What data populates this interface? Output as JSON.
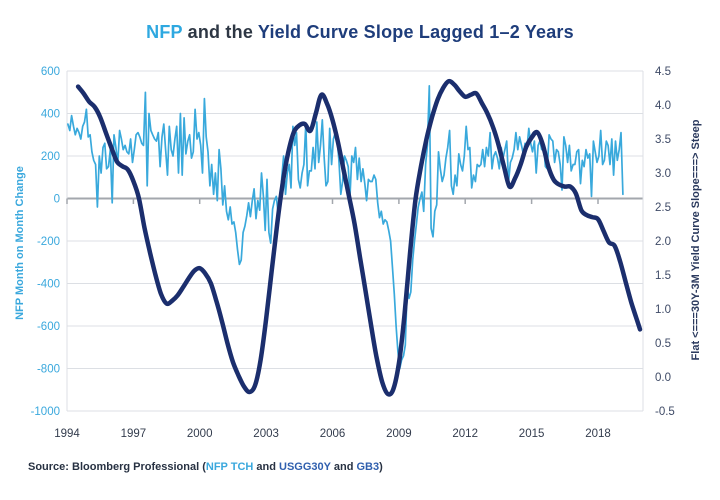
{
  "title": {
    "parts": [
      {
        "text": "NFP"
      },
      {
        "text": " and the "
      },
      {
        "text": "Yield Curve Slope Lagged 1–2 Years"
      }
    ]
  },
  "source": {
    "segments": [
      {
        "text": "Source: Bloomberg Professional ("
      },
      {
        "text": "NFP TCH"
      },
      {
        "text": " and "
      },
      {
        "text": "USGG30Y"
      },
      {
        "text": " and "
      },
      {
        "text": "GB3"
      },
      {
        "text": ")"
      }
    ]
  },
  "colors": {
    "nfp_line": "#39a9dc",
    "yield_line": "#1b2e6d",
    "left_axis_text": "#3aa8dd",
    "right_axis_text": "#3e4a66",
    "right_axis_title": "#2b3a5e",
    "x_axis_text": "#333c4d",
    "grid": "#dcdfe4",
    "zero_line": "#a3a7ad",
    "title_accent": "#2ea8e0",
    "title_navy": "#1e3d7b"
  },
  "chart_data": {
    "type": "line",
    "title": "NFP and the Yield Curve Slope Lagged 1–2 Years",
    "legend": "none",
    "grid": "horizontal",
    "x_axis": {
      "ticks": [
        "1994",
        "1997",
        "2000",
        "2003",
        "2006",
        "2009",
        "2012",
        "2015",
        "2018"
      ],
      "range": [
        1994,
        2019.9
      ]
    },
    "y_left": {
      "label": "NFP Month on Month Change",
      "range": [
        -1000,
        600
      ],
      "ticks": [
        "600",
        "400",
        "200",
        "0",
        "-200",
        "-400",
        "-600",
        "-800",
        "-1000"
      ]
    },
    "y_right": {
      "label": "Flat <===30Y-3M Yield Curve Slope===> Steep",
      "range": [
        -0.5,
        4.5
      ],
      "ticks": [
        "4.5",
        "4.0",
        "3.5",
        "3.0",
        "2.5",
        "2.0",
        "1.5",
        "1.0",
        "0.5",
        "0.0",
        "-0.5"
      ]
    },
    "series": [
      {
        "name": "NFP Month on Month Change (thousands, monthly)",
        "axis": "left",
        "color": "#39a9dc",
        "x_start": 1994.042,
        "x_step": 0.083333,
        "values": [
          350,
          320,
          390,
          340,
          300,
          330,
          310,
          280,
          340,
          360,
          420,
          290,
          300,
          220,
          180,
          160,
          -40,
          200,
          120,
          240,
          260,
          140,
          150,
          230,
          -20,
          300,
          240,
          160,
          320,
          280,
          230,
          250,
          220,
          210,
          280,
          170,
          230,
          300,
          310,
          290,
          260,
          250,
          500,
          60,
          400,
          320,
          300,
          280,
          270,
          310,
          150,
          290,
          350,
          230,
          110,
          340,
          230,
          200,
          280,
          340,
          120,
          400,
          110,
          380,
          210,
          270,
          300,
          190,
          220,
          420,
          280,
          310,
          250,
          120,
          470,
          290,
          220,
          60,
          160,
          20,
          120,
          -10,
          230,
          140,
          -30,
          60,
          -60,
          -100,
          -40,
          -120,
          -110,
          -160,
          -240,
          -310,
          -290,
          -160,
          -130,
          -80,
          -20,
          -85,
          -10,
          45,
          -95,
          -10,
          -55,
          120,
          10,
          -150,
          90,
          -160,
          -210,
          -50,
          -10,
          10,
          -70,
          -20,
          100,
          200,
          20,
          120,
          160,
          50,
          340,
          250,
          310,
          90,
          50,
          120,
          160,
          350,
          60,
          130,
          130,
          240,
          140,
          360,
          170,
          250,
          370,
          190,
          60,
          80,
          330,
          160,
          280,
          310,
          280,
          180,
          20,
          80,
          200,
          180,
          150,
          10,
          200,
          170,
          240,
          90,
          190,
          80,
          140,
          70,
          -10,
          90,
          80,
          80,
          110,
          90,
          -20,
          -90,
          -60,
          -120,
          -100,
          -110,
          -150,
          -200,
          -320,
          -450,
          -600,
          -720,
          -800,
          -760,
          -740,
          -690,
          -420,
          -470,
          -440,
          -290,
          -200,
          -120,
          -40,
          0,
          30,
          -60,
          160,
          250,
          530,
          -140,
          -180,
          -60,
          -30,
          220,
          140,
          80,
          110,
          190,
          240,
          320,
          60,
          20,
          110,
          60,
          210,
          160,
          130,
          200,
          340,
          230,
          240,
          50,
          110,
          80,
          160,
          150,
          160,
          230,
          150,
          240,
          200,
          310,
          140,
          200,
          220,
          190,
          140,
          240,
          190,
          230,
          270,
          80,
          170,
          190,
          230,
          310,
          230,
          290,
          250,
          210,
          260,
          240,
          330,
          260,
          220,
          270,
          120,
          250,
          270,
          230,
          250,
          150,
          140,
          300,
          280,
          270,
          170,
          230,
          220,
          160,
          40,
          290,
          250,
          170,
          250,
          130,
          160,
          160,
          220,
          230,
          70,
          180,
          150,
          230,
          190,
          210,
          10,
          270,
          220,
          170,
          200,
          320,
          160,
          180,
          270,
          250,
          160,
          280,
          110,
          270,
          180,
          230,
          310,
          20
        ]
      },
      {
        "name": "30Y-3M Yield Curve Slope, lagged 1-2 years (%)",
        "axis": "right",
        "color": "#1b2e6d",
        "points": [
          [
            1994.5,
            4.27
          ],
          [
            1994.75,
            4.17
          ],
          [
            1995,
            4.05
          ],
          [
            1995.25,
            3.97
          ],
          [
            1995.5,
            3.82
          ],
          [
            1995.75,
            3.6
          ],
          [
            1996,
            3.38
          ],
          [
            1996.25,
            3.17
          ],
          [
            1996.5,
            3.1
          ],
          [
            1996.75,
            3.05
          ],
          [
            1997,
            2.88
          ],
          [
            1997.25,
            2.63
          ],
          [
            1997.5,
            2.2
          ],
          [
            1997.75,
            1.83
          ],
          [
            1998,
            1.5
          ],
          [
            1998.25,
            1.22
          ],
          [
            1998.5,
            1.08
          ],
          [
            1998.75,
            1.12
          ],
          [
            1999,
            1.2
          ],
          [
            1999.25,
            1.32
          ],
          [
            1999.5,
            1.45
          ],
          [
            1999.75,
            1.56
          ],
          [
            2000,
            1.6
          ],
          [
            2000.25,
            1.52
          ],
          [
            2000.5,
            1.38
          ],
          [
            2000.75,
            1.12
          ],
          [
            2001,
            0.82
          ],
          [
            2001.25,
            0.5
          ],
          [
            2001.5,
            0.22
          ],
          [
            2001.75,
            0.02
          ],
          [
            2002,
            -0.14
          ],
          [
            2002.25,
            -0.22
          ],
          [
            2002.5,
            -0.12
          ],
          [
            2002.75,
            0.25
          ],
          [
            2003,
            0.85
          ],
          [
            2003.25,
            1.55
          ],
          [
            2003.5,
            2.25
          ],
          [
            2003.75,
            2.85
          ],
          [
            2004,
            3.3
          ],
          [
            2004.25,
            3.6
          ],
          [
            2004.5,
            3.7
          ],
          [
            2004.75,
            3.72
          ],
          [
            2005,
            3.62
          ],
          [
            2005.25,
            3.88
          ],
          [
            2005.5,
            4.15
          ],
          [
            2005.75,
            4.02
          ],
          [
            2006,
            3.78
          ],
          [
            2006.25,
            3.45
          ],
          [
            2006.5,
            3.05
          ],
          [
            2006.75,
            2.65
          ],
          [
            2007,
            2.25
          ],
          [
            2007.25,
            1.75
          ],
          [
            2007.5,
            1.25
          ],
          [
            2007.75,
            0.75
          ],
          [
            2008,
            0.28
          ],
          [
            2008.25,
            -0.08
          ],
          [
            2008.5,
            -0.25
          ],
          [
            2008.75,
            -0.18
          ],
          [
            2009,
            0.2
          ],
          [
            2009.25,
            0.9
          ],
          [
            2009.5,
            1.8
          ],
          [
            2009.75,
            2.6
          ],
          [
            2010,
            3.1
          ],
          [
            2010.25,
            3.5
          ],
          [
            2010.5,
            3.82
          ],
          [
            2010.75,
            4.08
          ],
          [
            2011,
            4.25
          ],
          [
            2011.25,
            4.35
          ],
          [
            2011.5,
            4.3
          ],
          [
            2011.75,
            4.2
          ],
          [
            2012,
            4.12
          ],
          [
            2012.25,
            4.15
          ],
          [
            2012.5,
            4.17
          ],
          [
            2012.75,
            4.03
          ],
          [
            2013,
            3.88
          ],
          [
            2013.25,
            3.68
          ],
          [
            2013.5,
            3.42
          ],
          [
            2013.75,
            3.1
          ],
          [
            2014,
            2.8
          ],
          [
            2014.25,
            2.92
          ],
          [
            2014.5,
            3.12
          ],
          [
            2014.75,
            3.38
          ],
          [
            2015,
            3.52
          ],
          [
            2015.25,
            3.6
          ],
          [
            2015.5,
            3.42
          ],
          [
            2015.75,
            3.1
          ],
          [
            2016,
            2.9
          ],
          [
            2016.25,
            2.83
          ],
          [
            2016.5,
            2.8
          ],
          [
            2016.75,
            2.8
          ],
          [
            2017,
            2.7
          ],
          [
            2017.25,
            2.45
          ],
          [
            2017.5,
            2.38
          ],
          [
            2017.75,
            2.35
          ],
          [
            2018,
            2.32
          ],
          [
            2018.25,
            2.15
          ],
          [
            2018.5,
            1.98
          ],
          [
            2018.75,
            1.93
          ],
          [
            2019,
            1.7
          ],
          [
            2019.25,
            1.4
          ],
          [
            2019.5,
            1.1
          ],
          [
            2019.75,
            0.85
          ],
          [
            2019.9,
            0.7
          ]
        ]
      }
    ]
  }
}
